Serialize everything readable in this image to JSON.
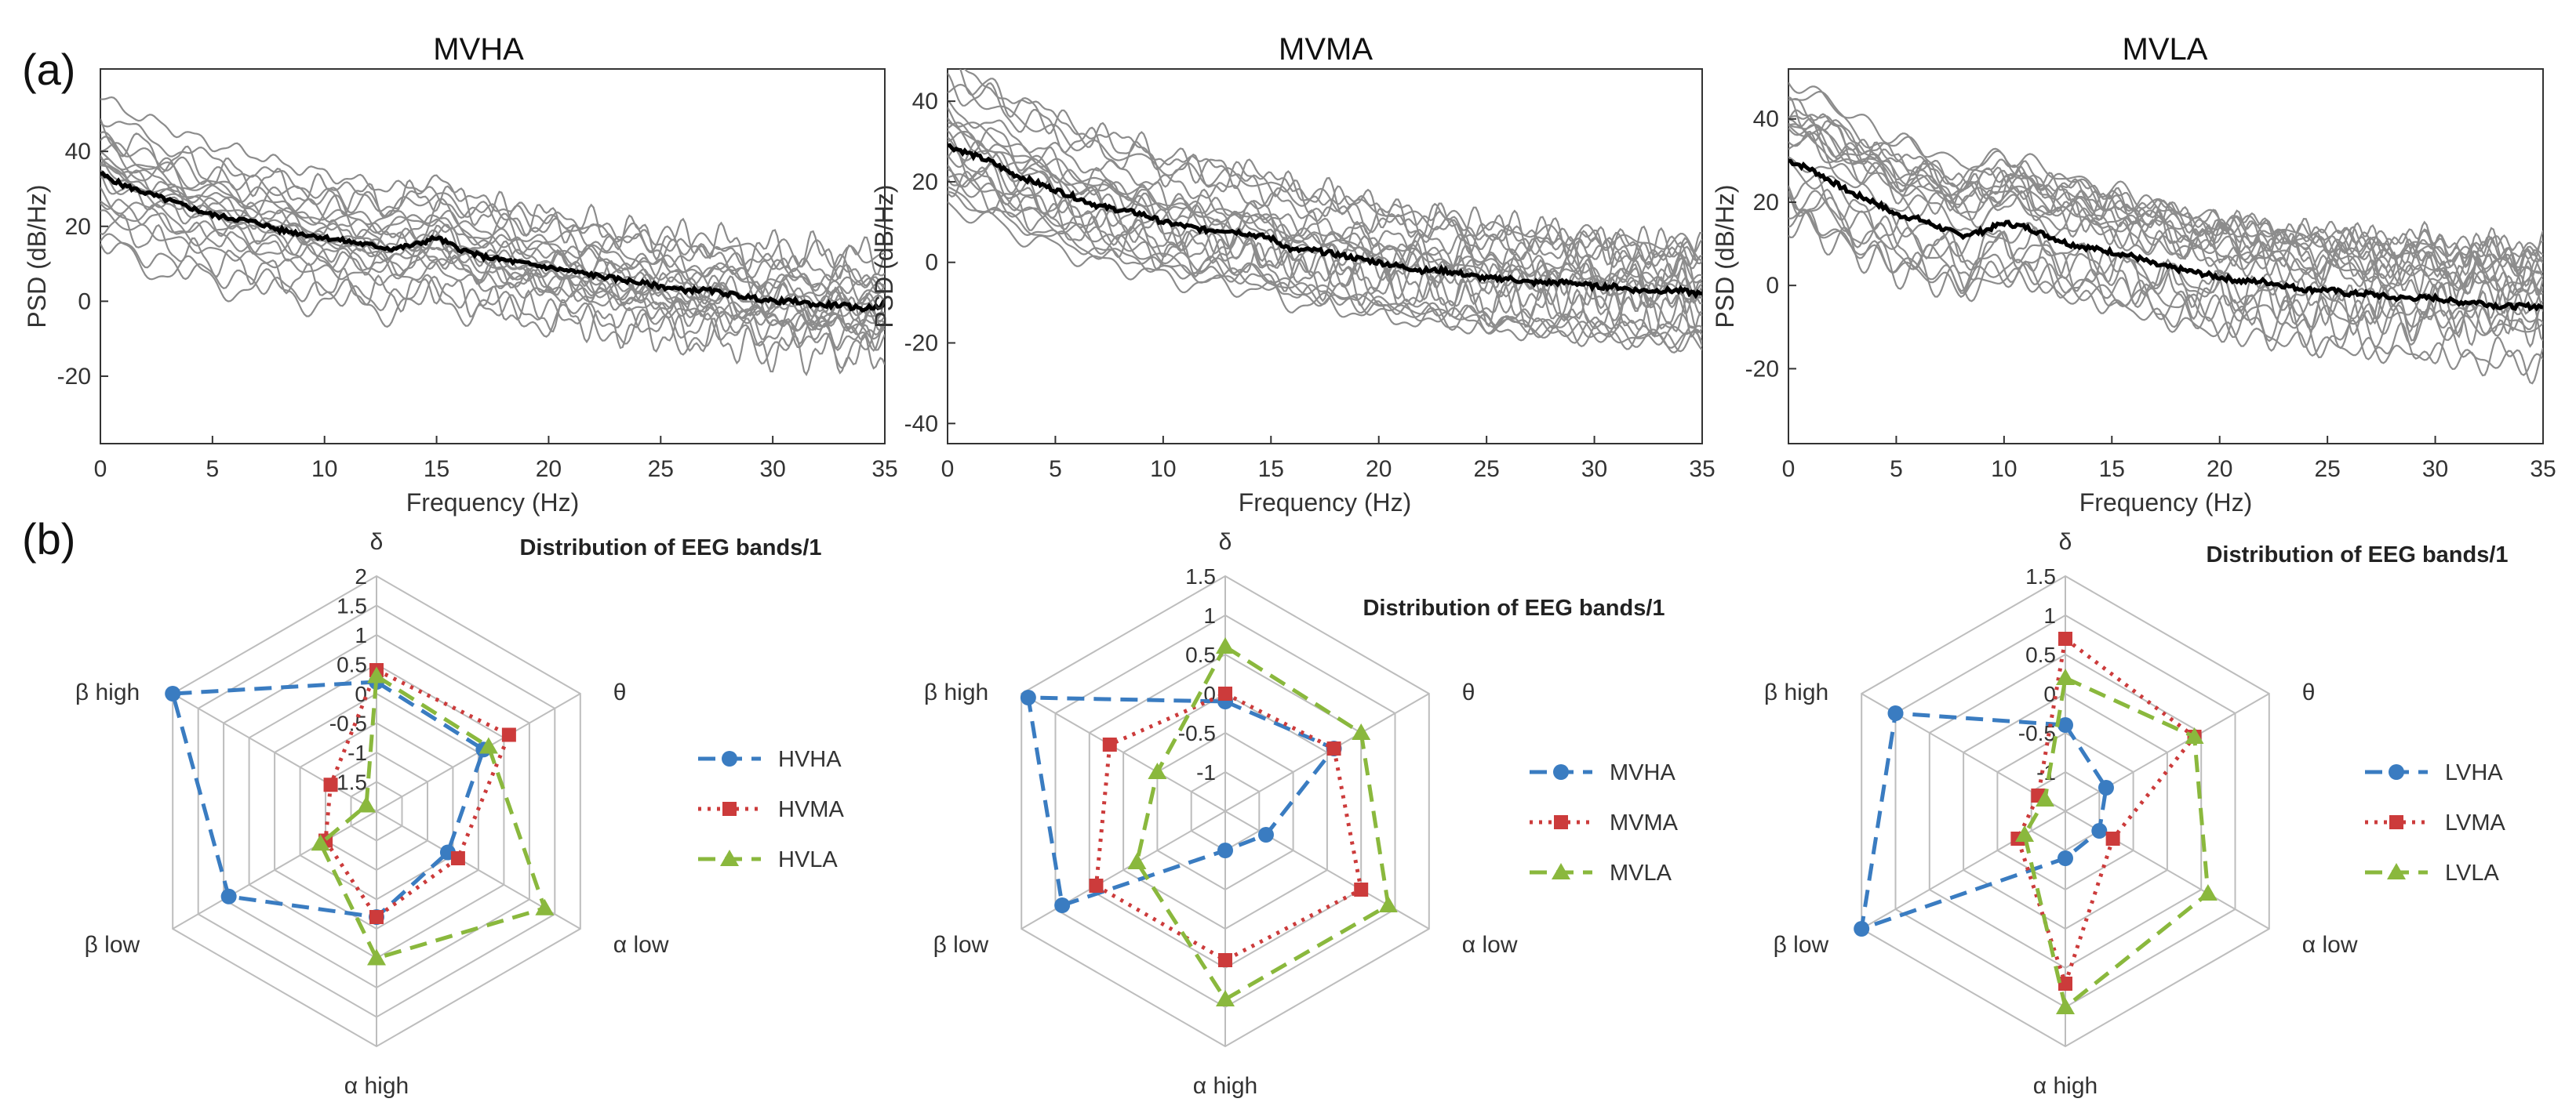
{
  "panel_labels": {
    "a": "(a)",
    "b": "(b)"
  },
  "colors": {
    "trace": "#8c8c8c",
    "mean": "#000000",
    "grid": "#bdbdbd",
    "blue": "#3a7cc1",
    "red": "#cc3b3b",
    "green": "#8ab83d"
  },
  "chart_data": [
    {
      "type": "line",
      "title": "MVHA",
      "xlabel": "Frequency (Hz)",
      "ylabel": "PSD (dB/Hz)",
      "xlim": [
        0,
        35
      ],
      "ylim": [
        -38,
        62
      ],
      "xticks": [
        "0",
        "5",
        "10",
        "15",
        "20",
        "25",
        "30",
        "35"
      ],
      "yticks": [
        "-20",
        "0",
        "20",
        "40"
      ],
      "mean_series": {
        "name": "mean",
        "x": [
          0,
          1,
          2,
          3,
          4,
          5,
          6,
          7,
          8,
          9,
          10,
          11,
          12,
          13,
          14,
          15,
          16,
          17,
          18,
          19,
          20,
          21,
          22,
          23,
          24,
          25,
          26,
          27,
          28,
          29,
          30,
          31,
          32,
          33,
          34,
          35
        ],
        "values": [
          34,
          31,
          29,
          27,
          25,
          23,
          22,
          21,
          19,
          18,
          17,
          16,
          15,
          14,
          15,
          17,
          14,
          12,
          11,
          10,
          9,
          8,
          7,
          6,
          5,
          4,
          3,
          3,
          2,
          1,
          0,
          0,
          -1,
          -1,
          -2,
          -1
        ]
      },
      "trace_count": 22
    },
    {
      "type": "line",
      "title": "MVMA",
      "xlabel": "Frequency (Hz)",
      "ylabel": "PSD (dB/Hz)",
      "xlim": [
        0,
        35
      ],
      "ylim": [
        -45,
        48
      ],
      "xticks": [
        "0",
        "5",
        "10",
        "15",
        "20",
        "25",
        "30",
        "35"
      ],
      "yticks": [
        "-40",
        "-20",
        "0",
        "20",
        "40"
      ],
      "mean_series": {
        "name": "mean",
        "x": [
          0,
          1,
          2,
          3,
          4,
          5,
          6,
          7,
          8,
          9,
          10,
          11,
          12,
          13,
          14,
          15,
          16,
          17,
          18,
          19,
          20,
          21,
          22,
          23,
          24,
          25,
          26,
          27,
          28,
          29,
          30,
          31,
          32,
          33,
          34,
          35
        ],
        "values": [
          29,
          27,
          25,
          22,
          20,
          18,
          16,
          14,
          13,
          12,
          10,
          9,
          8,
          8,
          7,
          6,
          3,
          3,
          2,
          1,
          0,
          -1,
          -2,
          -2,
          -3,
          -4,
          -4,
          -5,
          -5,
          -5,
          -6,
          -6,
          -7,
          -7,
          -7,
          -8
        ]
      },
      "trace_count": 22
    },
    {
      "type": "line",
      "title": "MVLA",
      "xlabel": "Frequency (Hz)",
      "ylabel": "PSD (dB/Hz)",
      "xlim": [
        0,
        35
      ],
      "ylim": [
        -38,
        52
      ],
      "xticks": [
        "0",
        "5",
        "10",
        "15",
        "20",
        "25",
        "30",
        "35"
      ],
      "yticks": [
        "-20",
        "0",
        "20",
        "40"
      ],
      "mean_series": {
        "name": "mean",
        "x": [
          0,
          1,
          2,
          3,
          4,
          5,
          6,
          7,
          8,
          9,
          10,
          11,
          12,
          13,
          14,
          15,
          16,
          17,
          18,
          19,
          20,
          21,
          22,
          23,
          24,
          25,
          26,
          27,
          28,
          29,
          30,
          31,
          32,
          33,
          34,
          35
        ],
        "values": [
          30,
          28,
          25,
          22,
          20,
          17,
          16,
          14,
          12,
          13,
          15,
          14,
          12,
          10,
          9,
          8,
          7,
          5,
          4,
          3,
          2,
          1,
          1,
          0,
          -1,
          -1,
          -2,
          -2,
          -3,
          -3,
          -3,
          -4,
          -4,
          -5,
          -5,
          -5
        ]
      },
      "trace_count": 22
    },
    {
      "type": "radar",
      "title": "Distribution of EEG bands/1",
      "axes": [
        "δ",
        "θ",
        "α low",
        "α high",
        "β low",
        "β high"
      ],
      "rmin": -2,
      "rmax": 2,
      "ticks": [
        "-1.5",
        "-1",
        "-0.5",
        "0",
        "0.5",
        "1",
        "1.5",
        "2"
      ],
      "series": [
        {
          "name": "HVHA",
          "color_key": "blue",
          "style": "dashed",
          "marker": "circle",
          "values": [
            0.2,
            0.1,
            -0.6,
            -0.2,
            0.9,
            2.0
          ]
        },
        {
          "name": "HVMA",
          "color_key": "red",
          "style": "dotted",
          "marker": "square",
          "values": [
            0.4,
            0.6,
            -0.4,
            -0.2,
            -1.0,
            -1.1
          ]
        },
        {
          "name": "HVLA",
          "color_key": "green",
          "style": "dashed",
          "marker": "triangle",
          "values": [
            0.3,
            0.2,
            1.3,
            0.5,
            -0.9,
            -1.8
          ]
        }
      ]
    },
    {
      "type": "radar",
      "title": "Distribution of EEG bands/1",
      "axes": [
        "δ",
        "θ",
        "α low",
        "α high",
        "β low",
        "β high"
      ],
      "rmin": -1.5,
      "rmax": 1.5,
      "ticks": [
        "-1",
        "-0.5",
        "0",
        "0.5",
        "1",
        "1.5"
      ],
      "series": [
        {
          "name": "MVHA",
          "color_key": "blue",
          "style": "dashed",
          "marker": "circle",
          "values": [
            -0.1,
            0.1,
            -0.9,
            -1.0,
            0.9,
            1.4
          ]
        },
        {
          "name": "MVMA",
          "color_key": "red",
          "style": "dotted",
          "marker": "square",
          "values": [
            0.0,
            0.1,
            0.5,
            0.4,
            0.4,
            0.2
          ]
        },
        {
          "name": "MVLA",
          "color_key": "green",
          "style": "dashed",
          "marker": "triangle",
          "values": [
            0.6,
            0.5,
            0.9,
            0.9,
            -0.2,
            -0.5
          ]
        }
      ]
    },
    {
      "type": "radar",
      "title": "Distribution of EEG bands/1",
      "axes": [
        "δ",
        "θ",
        "α low",
        "α high",
        "β low",
        "β high"
      ],
      "rmin": -1.5,
      "rmax": 1.5,
      "ticks": [
        "-1",
        "-0.5",
        "0",
        "0.5",
        "1",
        "1.5"
      ],
      "series": [
        {
          "name": "LVHA",
          "color_key": "blue",
          "style": "dashed",
          "marker": "circle",
          "values": [
            -0.4,
            -0.9,
            -1.0,
            -0.9,
            1.5,
            1.0
          ]
        },
        {
          "name": "LVMA",
          "color_key": "red",
          "style": "dotted",
          "marker": "square",
          "values": [
            0.7,
            0.4,
            -0.8,
            0.7,
            -0.8,
            -1.1
          ]
        },
        {
          "name": "LVLA",
          "color_key": "green",
          "style": "dashed",
          "marker": "triangle",
          "values": [
            0.2,
            0.4,
            0.6,
            1.0,
            -0.9,
            -1.2
          ]
        }
      ]
    }
  ]
}
